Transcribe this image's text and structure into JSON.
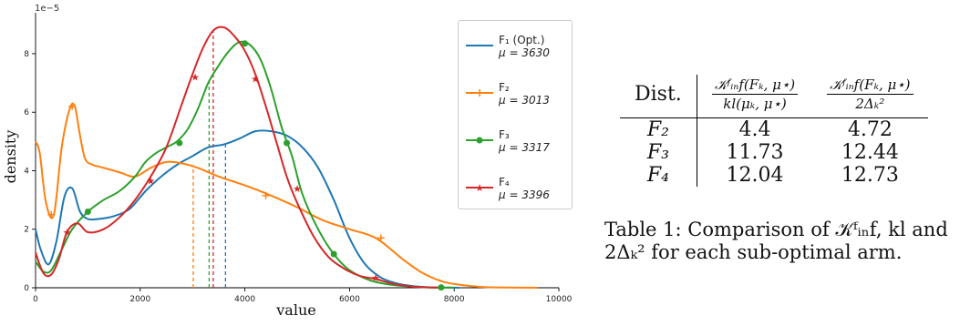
{
  "chart_data": {
    "type": "line",
    "xlabel": "value",
    "ylabel": "density",
    "offset_label": "1e−5",
    "xlim": [
      0,
      10000
    ],
    "ylim": [
      0,
      9.4
    ],
    "y_scale_factor": 1e-05,
    "xticks": [
      0,
      2000,
      4000,
      6000,
      8000,
      10000
    ],
    "yticks": [
      0,
      2,
      4,
      6,
      8
    ],
    "legend_position": "top-right",
    "series": [
      {
        "name": "F₁ (Opt.)",
        "mu_label": "μ = 3630",
        "mean": 3630,
        "color": "#1f77b4",
        "marker": "none",
        "x": [
          0,
          100,
          250,
          400,
          550,
          700,
          850,
          1000,
          1200,
          1500,
          1800,
          2100,
          2400,
          2700,
          3000,
          3300,
          3600,
          3900,
          4200,
          4500,
          4800,
          5100,
          5400,
          5700,
          6000,
          6300,
          6600,
          6900,
          7200,
          7500,
          7800,
          8100
        ],
        "y": [
          2.0,
          1.3,
          0.8,
          1.6,
          3.1,
          3.4,
          2.6,
          2.35,
          2.35,
          2.45,
          2.7,
          3.3,
          3.8,
          4.2,
          4.5,
          4.8,
          4.9,
          5.1,
          5.35,
          5.35,
          5.2,
          4.8,
          4.1,
          3.0,
          1.7,
          0.8,
          0.35,
          0.15,
          0.06,
          0.02,
          0.01,
          0.0
        ]
      },
      {
        "name": "F₂",
        "mu_label": "μ = 3013",
        "mean": 3013,
        "color": "#ff7f0e",
        "marker": "plus",
        "x": [
          0,
          80,
          200,
          350,
          500,
          650,
          750,
          850,
          950,
          1100,
          1300,
          1600,
          1900,
          2200,
          2500,
          2800,
          3100,
          3500,
          4000,
          4500,
          5000,
          5500,
          6000,
          6500,
          7000,
          7400,
          7800,
          8200,
          8600,
          9000,
          9600
        ],
        "y": [
          5.0,
          4.6,
          2.9,
          2.5,
          4.8,
          6.1,
          6.2,
          5.2,
          4.4,
          4.2,
          4.1,
          3.95,
          3.8,
          4.1,
          4.3,
          4.25,
          4.1,
          3.8,
          3.5,
          3.15,
          2.75,
          2.3,
          2.0,
          1.7,
          1.0,
          0.5,
          0.2,
          0.08,
          0.02,
          0.01,
          0.0
        ],
        "marker_x": [
          300,
          700,
          4400,
          6600
        ],
        "marker_y": [
          2.5,
          6.2,
          3.15,
          1.7
        ]
      },
      {
        "name": "F₃",
        "mu_label": "μ = 3317",
        "mean": 3317,
        "color": "#2ca02c",
        "marker": "circle",
        "x": [
          0,
          150,
          300,
          500,
          700,
          1000,
          1300,
          1600,
          1900,
          2100,
          2300,
          2500,
          2700,
          2900,
          3100,
          3300,
          3500,
          3700,
          3900,
          4100,
          4300,
          4500,
          4700,
          4900,
          5100,
          5400,
          5700,
          6000,
          6400,
          6800,
          7200,
          7600,
          8000
        ],
        "y": [
          0.9,
          0.55,
          0.6,
          1.3,
          2.0,
          2.6,
          3.0,
          3.3,
          3.8,
          4.3,
          4.6,
          4.8,
          5.0,
          5.4,
          6.1,
          7.0,
          7.6,
          8.1,
          8.4,
          8.3,
          7.8,
          6.8,
          5.5,
          4.5,
          3.2,
          2.0,
          1.15,
          0.6,
          0.25,
          0.1,
          0.04,
          0.01,
          0.0
        ],
        "marker_x": [
          1000,
          2750,
          4000,
          4800,
          5700,
          7750
        ],
        "marker_y": [
          2.6,
          4.95,
          8.35,
          4.95,
          1.15,
          0.01
        ]
      },
      {
        "name": "F₄",
        "mu_label": "μ = 3396",
        "mean": 3396,
        "color": "#d62728",
        "marker": "star",
        "x": [
          0,
          150,
          300,
          450,
          600,
          800,
          1000,
          1300,
          1600,
          1900,
          2200,
          2500,
          2800,
          3000,
          3200,
          3400,
          3600,
          3800,
          4000,
          4200,
          4400,
          4600,
          4800,
          5000,
          5300,
          5600,
          5900,
          6200,
          6500,
          6800,
          7100,
          7400,
          7700
        ],
        "y": [
          1.2,
          0.5,
          0.45,
          1.0,
          1.9,
          2.2,
          1.9,
          2.0,
          2.4,
          3.0,
          3.8,
          4.8,
          6.3,
          7.3,
          8.2,
          8.8,
          8.9,
          8.6,
          8.1,
          7.3,
          6.2,
          5.0,
          3.8,
          2.9,
          1.8,
          1.05,
          0.65,
          0.4,
          0.3,
          0.15,
          0.06,
          0.02,
          0.0
        ],
        "marker_x": [
          600,
          2200,
          3050,
          4200,
          5000,
          6500
        ],
        "marker_y": [
          1.9,
          3.65,
          7.2,
          7.15,
          3.4,
          0.35
        ]
      }
    ]
  },
  "table": {
    "col_dist": "Dist.",
    "col1_num": "𝒦ᶠᵢₙf(Fₖ, μ⋆)",
    "col1_den": "kl(μₖ, μ⋆)",
    "col2_num": "𝒦ᶠᵢₙf(Fₖ, μ⋆)",
    "col2_den": "2Δₖ²",
    "rows": [
      {
        "dist": "F₂",
        "v1": "4.4",
        "v2": "4.72"
      },
      {
        "dist": "F₃",
        "v1": "11.73",
        "v2": "12.44"
      },
      {
        "dist": "F₄",
        "v1": "12.04",
        "v2": "12.73"
      }
    ]
  },
  "caption": "Table 1: Comparison of 𝒦ᶠᵢₙf, kl and 2Δₖ² for each sub-optimal arm."
}
